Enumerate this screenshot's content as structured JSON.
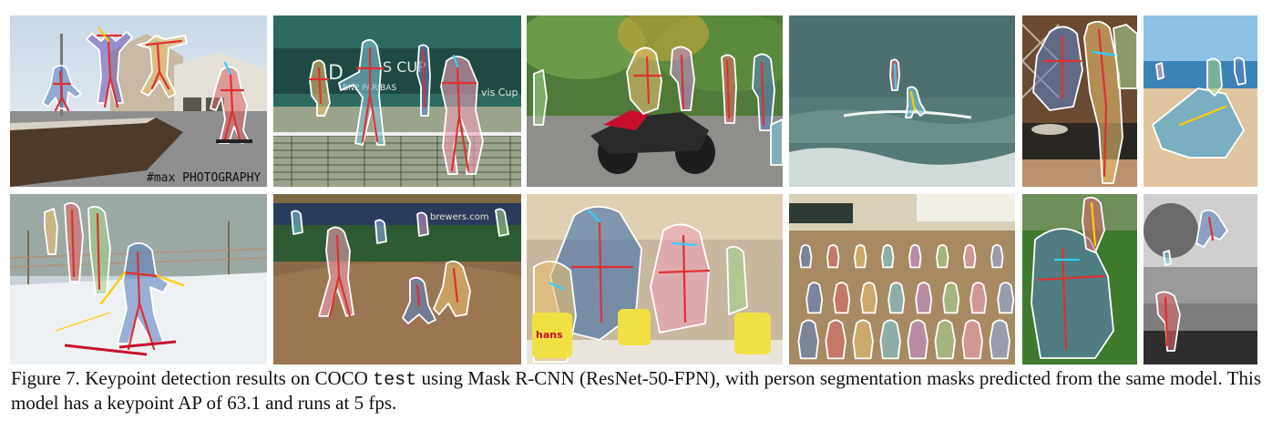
{
  "figure": {
    "caption": {
      "label": "Figure 7.",
      "text_before": " Keypoint detection results on COCO ",
      "split_name": "test",
      "text_after": " using Mask R-CNN (ResNet-50-FPN), with person segmentation masks predicted from the same model. This model has a keypoint AP of 63.1 and runs at 5 fps."
    },
    "panels": [
      {
        "scene": "jumping-people-street",
        "watermark": "#max PHOTOGRAPHY",
        "persons": 4
      },
      {
        "scene": "tennis-court",
        "sign_text_1": "D",
        "sign_text_2": "S CUP",
        "sign_text_3": "BNP PARIBAS",
        "sign_text_4": "vis Cup",
        "persons": 4
      },
      {
        "scene": "motorcycle-street",
        "persons": 6
      },
      {
        "scene": "surfers-sea",
        "persons": 2
      },
      {
        "scene": "kitchen",
        "persons": 3
      },
      {
        "scene": "beach-kite",
        "persons": 4
      },
      {
        "scene": "skiers-snow",
        "persons": 4
      },
      {
        "scene": "baseball-field",
        "banner_text": "brewers.com",
        "persons": 7
      },
      {
        "scene": "interview-girl",
        "product_text": "hans",
        "persons": 4
      },
      {
        "scene": "classroom-kids",
        "persons": 24
      },
      {
        "scene": "child-lawn",
        "persons": 2
      },
      {
        "scene": "skateboard-bw",
        "persons": 3
      }
    ],
    "palette": {
      "mask_colors": [
        "#5b7fc0",
        "#d96a6a",
        "#e8c06e",
        "#7cc7d8",
        "#c48bd1",
        "#a4d38c",
        "#f0a0b8",
        "#8fa8e0"
      ],
      "keypoint_colors": [
        "#e03030",
        "#ffcc00",
        "#30d0ff",
        "#70e070",
        "#ff66cc",
        "#4477ff"
      ]
    }
  }
}
